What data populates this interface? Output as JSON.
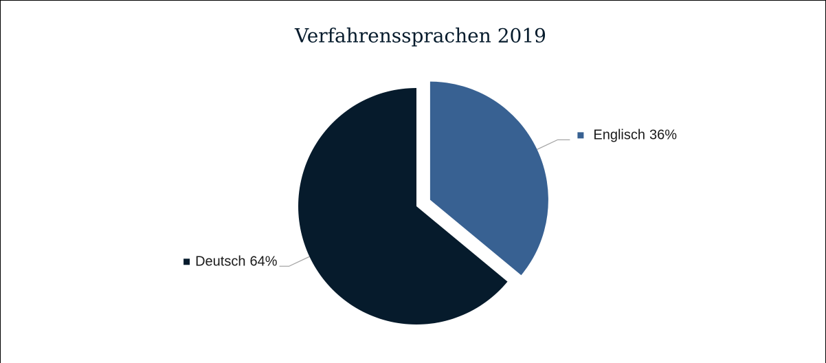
{
  "chart_data": {
    "type": "pie",
    "title": "Verfahrenssprachen 2019",
    "categories": [
      "Englisch",
      "Deutsch"
    ],
    "values": [
      36,
      64
    ],
    "value_labels": [
      "36%",
      "64%"
    ],
    "colors": [
      "#386192",
      "#061b2c"
    ]
  }
}
